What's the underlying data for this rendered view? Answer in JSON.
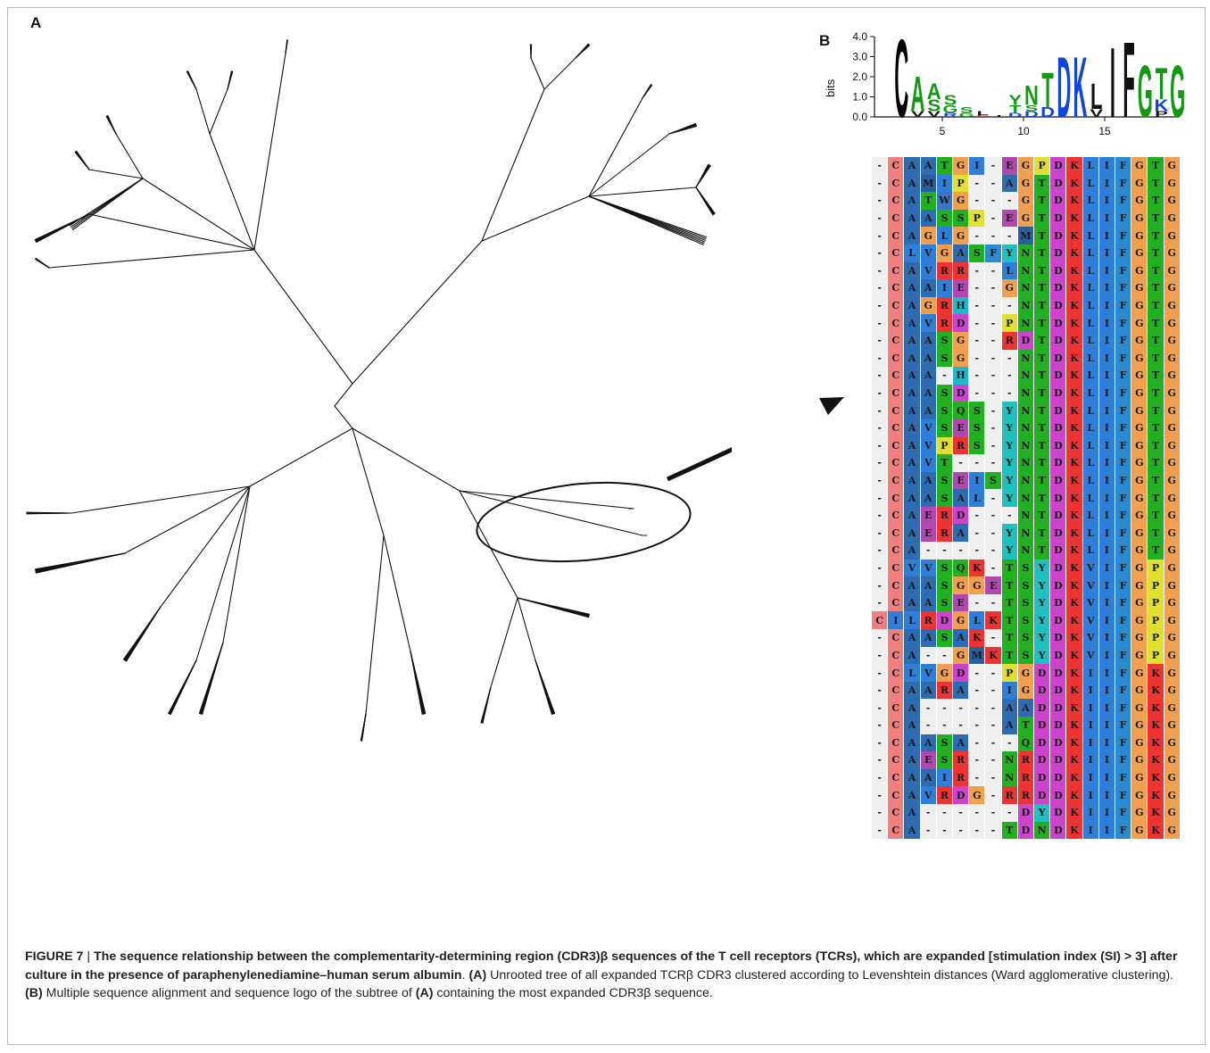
{
  "panel_a_label": "A",
  "panel_b_label": "B",
  "logo": {
    "ylabel": "bits",
    "yticks": [
      "4.0",
      "3.0",
      "2.0",
      "1.0",
      "0.0"
    ],
    "xticks": [
      "5",
      "10",
      "15"
    ],
    "colors": {
      "C": "#000000",
      "A": "#119911",
      "V": "#111111",
      "S": "#119911",
      "G": "#119911",
      "Y": "#119911",
      "N": "#119911",
      "T": "#119911",
      "D": "#1144dd",
      "K": "#1144dd",
      "L": "#111111",
      "I": "#111111",
      "F": "#111111",
      "E": "#cc2222",
      "R": "#1144dd",
      "P": "#111111",
      "Q": "#119911",
      "H": "#1144dd",
      "W": "#111111",
      "M": "#111111"
    }
  },
  "alignment": {
    "rows": [
      "-CAATGI-EGPDKLIFGTG",
      "-CAMIP--AGTDKLIFGTG",
      "-CATWG---GTDKLIFGTG",
      "-CAASSP-EGTDKLIFGTG",
      "-CAGLG---MTDKLIFGTG",
      "-CLVGASFYNTDKLIFGTG",
      "-CAVRR--LNTDKLIFGTG",
      "-CAAIE--GNTDKLIFGTG",
      "-CAGRH---NTDKLIFGTG",
      "-CAVRD--PNTDKLIFGTG",
      "-CAASG--RDTDKLIFGTG",
      "-CAASG---NTDKLIFGTG",
      "-CAA-H---NTDKLIFGTG",
      "-CAASD---NTDKLIFGTG",
      "-CAASQS-YNTDKLIFGTG",
      "-CAVSES-YNTDKLIFGTG",
      "-CAVPRS-YNTDKLIFGTG",
      "-CAVT---YNTDKLIFGTG",
      "-CAASEISYNTDKLIFGTG",
      "-CAASAL-YNTDKLIFGTG",
      "-CAERD---NTDKLIFGTG",
      "-CAERA--YNTDKLIFGTG",
      "-CA-----YNTDKLIFGTG",
      "-CVVSQK-TSYDKVIFGPG",
      "-CAASGGETSYDKVIFGPG",
      "-CAASE--TSYDKVIFGPG",
      "CILRDGLKTSYDKVIFGPG",
      "-CAASAK-TSYDKVIFGPG",
      "-CA--GMKTSYDKVIFGPG",
      "-CLVGD--PGDDKIIFGKG",
      "-CAARA--IGDDKIIFGKG",
      "-CA-----AADDKIIFGKG",
      "-CA-----ATDDKIIFGKG",
      "-CAASA---QDDKIIFGKG",
      "-CAESR--NRDDKIIFGKG",
      "-CAAIR--NRDDKIIFGKG",
      "-CAVRDG-RRDDKIIFGKG",
      "-CA------DYDKIIFGKG",
      "-CA-----TDNDKIIFGKG"
    ],
    "colors": {
      "-": "#efefef",
      "C": "#f08080",
      "A": "#2f6bb0",
      "V": "#2f7fd8",
      "L": "#2f7fd8",
      "I": "#2f7fd8",
      "M": "#2a5f9e",
      "F": "#2a8bd0",
      "W": "#3a74c4",
      "G": "#f0a050",
      "P": "#e0e030",
      "S": "#22b022",
      "T": "#22b022",
      "N": "#22b022",
      "Q": "#22b022",
      "Y": "#20c0c0",
      "H": "#20b8c8",
      "D": "#cc44cc",
      "E": "#b048b0",
      "K": "#ee3333",
      "R": "#ee3333"
    }
  },
  "caption": {
    "figure_label": "FIGURE 7",
    "separator": " | ",
    "title": "The sequence relationship between the complementarity-determining region (CDR3)β sequences of the T cell receptors (TCRs), which are expanded [stimulation index (SI) > 3] after culture in the presence of paraphenylenediamine–human serum albumin",
    "title_end": ". ",
    "a_ref": "(A)",
    "a_text": " Unrooted tree of all expanded TCRβ CDR3 clustered according to Levenshtein distances (Ward agglomerative clustering). ",
    "b_ref": "(B)",
    "b_text": " Multiple sequence alignment and sequence logo of the subtree of ",
    "b_ref2": "(A)",
    "b_text2": " containing the most expanded CDR3β sequence."
  }
}
